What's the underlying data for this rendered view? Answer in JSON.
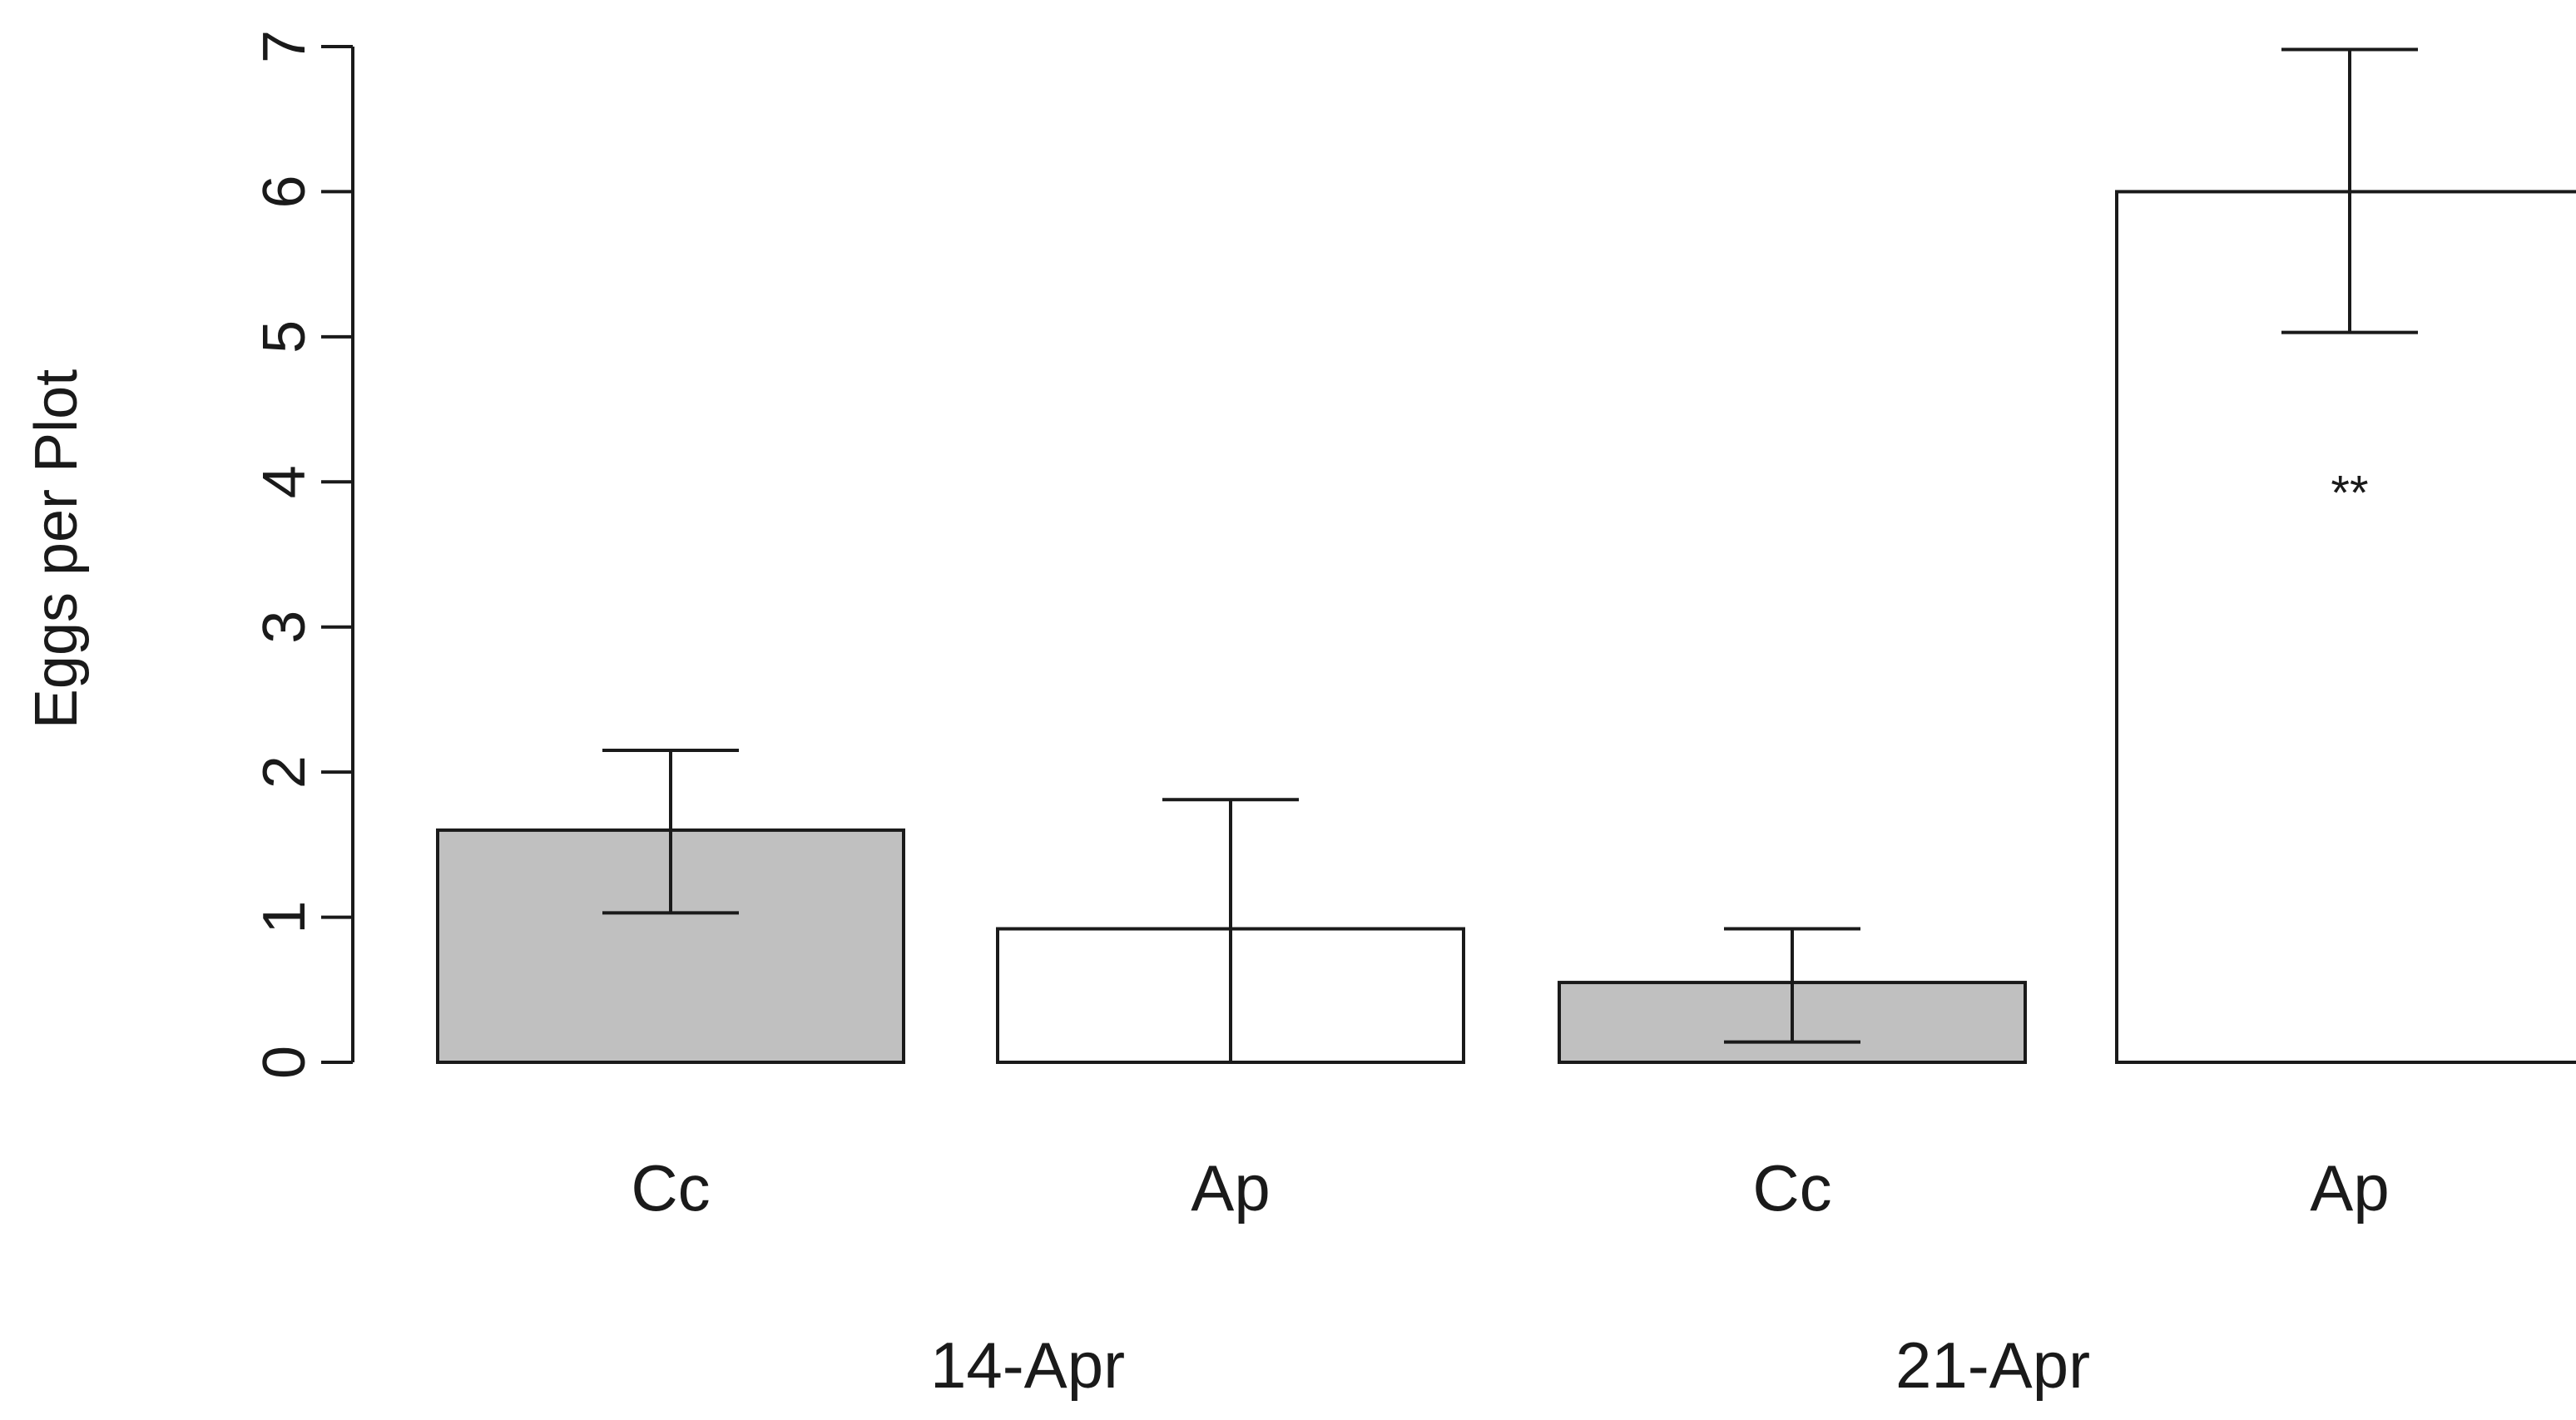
{
  "chart_data": {
    "type": "bar",
    "title": "",
    "xlabel": "",
    "ylabel": "Eggs per Plot",
    "ylim": [
      0,
      7
    ],
    "yticks": [
      0,
      1,
      2,
      3,
      4,
      5,
      6,
      7
    ],
    "grid": false,
    "categories": [
      "Cc",
      "Ap",
      "Cc",
      "Ap"
    ],
    "groups": [
      {
        "label": "14-Apr",
        "categories": [
          "Cc",
          "Ap"
        ]
      },
      {
        "label": "21-Apr",
        "categories": [
          "Cc",
          "Ap"
        ]
      }
    ],
    "values": [
      1.6,
      0.92,
      0.55,
      6.0
    ],
    "error_low": [
      1.03,
      0.0,
      0.14,
      5.03
    ],
    "error_high": [
      2.15,
      1.81,
      0.92,
      6.98
    ],
    "fills": [
      "#c0c0c0",
      "#ffffff",
      "#c0c0c0",
      "#ffffff"
    ],
    "annotations": [
      {
        "text": "**",
        "x": 3.5,
        "y": 3.97
      }
    ]
  }
}
